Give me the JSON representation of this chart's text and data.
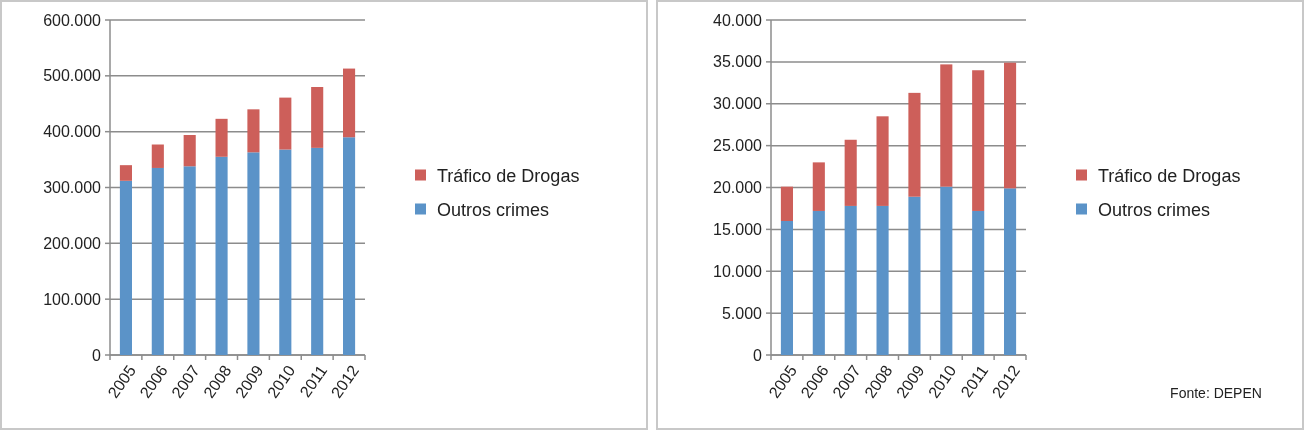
{
  "chart_data": [
    {
      "type": "bar",
      "stacked": true,
      "categories": [
        "2005",
        "2006",
        "2007",
        "2008",
        "2009",
        "2010",
        "2011",
        "2012"
      ],
      "series": [
        {
          "name": "Outros crimes",
          "color": "#5b93c8",
          "values": [
            312000,
            335000,
            338000,
            355000,
            363000,
            368000,
            371000,
            390000
          ]
        },
        {
          "name": "Tráfico de Drogas",
          "color": "#cd5f5a",
          "values": [
            28000,
            42000,
            56000,
            68000,
            77000,
            93000,
            109000,
            123000
          ]
        }
      ],
      "ylim": [
        0,
        600000
      ],
      "yticks": [
        0,
        {
          "value": 100000,
          "label": "100.000"
        },
        {
          "value": 200000,
          "label": "200.000"
        },
        {
          "value": 300000,
          "label": "300.000"
        },
        {
          "value": 400000,
          "label": "400.000"
        },
        {
          "value": 500000,
          "label": "500.000"
        },
        {
          "value": 600000,
          "label": "600.000"
        }
      ],
      "grid": "y",
      "legend": "right"
    },
    {
      "type": "bar",
      "stacked": true,
      "categories": [
        "2005",
        "2006",
        "2007",
        "2008",
        "2009",
        "2010",
        "2011",
        "2012"
      ],
      "series": [
        {
          "name": "Outros crimes",
          "color": "#5b93c8",
          "values": [
            16000,
            17200,
            17800,
            17800,
            18900,
            20100,
            17200,
            19900
          ]
        },
        {
          "name": "Tráfico de Drogas",
          "color": "#cd5f5a",
          "values": [
            4100,
            5800,
            7900,
            10700,
            12400,
            14600,
            16800,
            15000
          ]
        }
      ],
      "ylim": [
        0,
        40000
      ],
      "yticks": [
        0,
        {
          "value": 5000,
          "label": "5.000"
        },
        {
          "value": 10000,
          "label": "10.000"
        },
        {
          "value": 15000,
          "label": "15.000"
        },
        {
          "value": 20000,
          "label": "20.000"
        },
        {
          "value": 25000,
          "label": "25.000"
        },
        {
          "value": 30000,
          "label": "30.000"
        },
        {
          "value": 35000,
          "label": "35.000"
        },
        {
          "value": 40000,
          "label": "40.000"
        }
      ],
      "grid": "y",
      "legend": "right",
      "annotations": [
        "Fonte: DEPEN"
      ]
    }
  ]
}
